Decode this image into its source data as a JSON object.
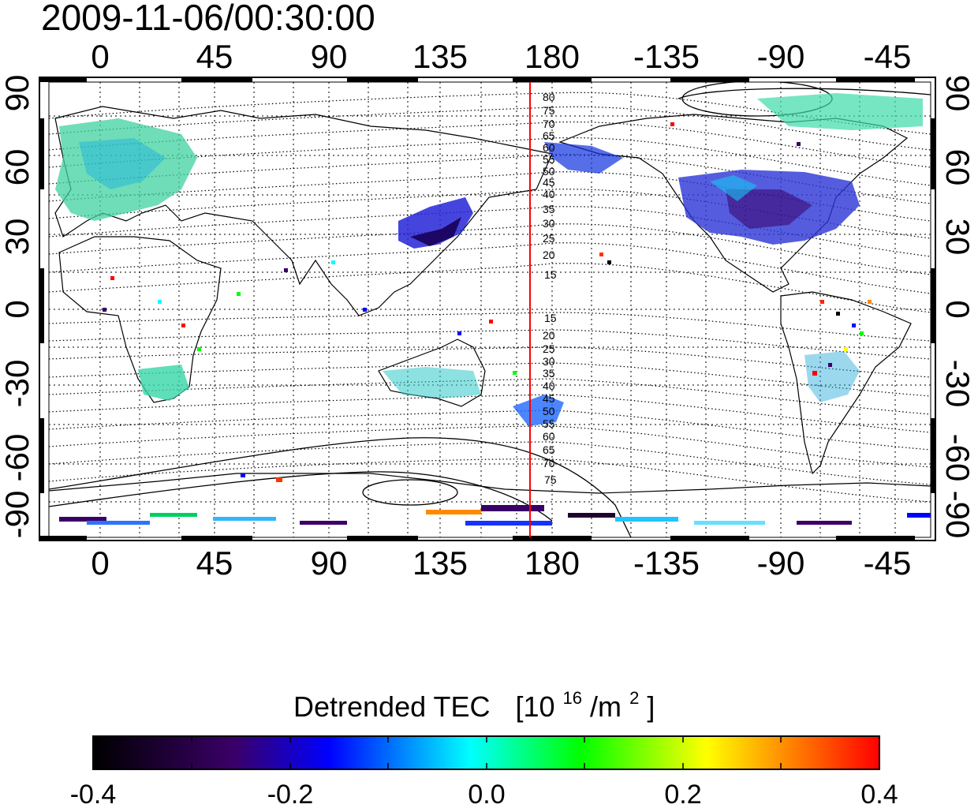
{
  "timestamp": "2009-11-06/00:30:00",
  "map": {
    "lon_ticks_top": [
      "0",
      "45",
      "90",
      "135",
      "180",
      "-135",
      "-90",
      "-45"
    ],
    "lon_ticks_bottom": [
      "0",
      "45",
      "90",
      "135",
      "180",
      "-135",
      "-90",
      "-45"
    ],
    "lat_ticks_left": [
      "90",
      "60",
      "30",
      "0",
      "-30",
      "-60",
      "-90"
    ],
    "lat_ticks_right": [
      "90",
      "60",
      "30",
      "0",
      "-30",
      "-60",
      "-90"
    ],
    "contour_labels_north": [
      "80",
      "75",
      "70",
      "65",
      "60",
      "55",
      "50",
      "45",
      "40",
      "35",
      "30",
      "25",
      "20",
      "15"
    ],
    "contour_labels_south": [
      "15",
      "20",
      "25",
      "30",
      "35",
      "40",
      "45",
      "50",
      "55",
      "60",
      "65",
      "70",
      "75"
    ],
    "marker_line_color": "#ff0000",
    "marker_longitude": 172
  },
  "colorbar": {
    "title_main": "Detrended TEC",
    "title_unit_open": "[10",
    "title_unit_sup1": "16",
    "title_unit_mid": "/m",
    "title_unit_sup2": "2",
    "title_unit_close": "]",
    "tick_labels": [
      "-0.4",
      "-0.2",
      "0.0",
      "0.2",
      "0.4"
    ],
    "range": [
      -0.4,
      0.4
    ],
    "colors": [
      "#000000",
      "#3a0068",
      "#0000ff",
      "#00ffff",
      "#00ff00",
      "#ffff00",
      "#ff0000"
    ]
  }
}
